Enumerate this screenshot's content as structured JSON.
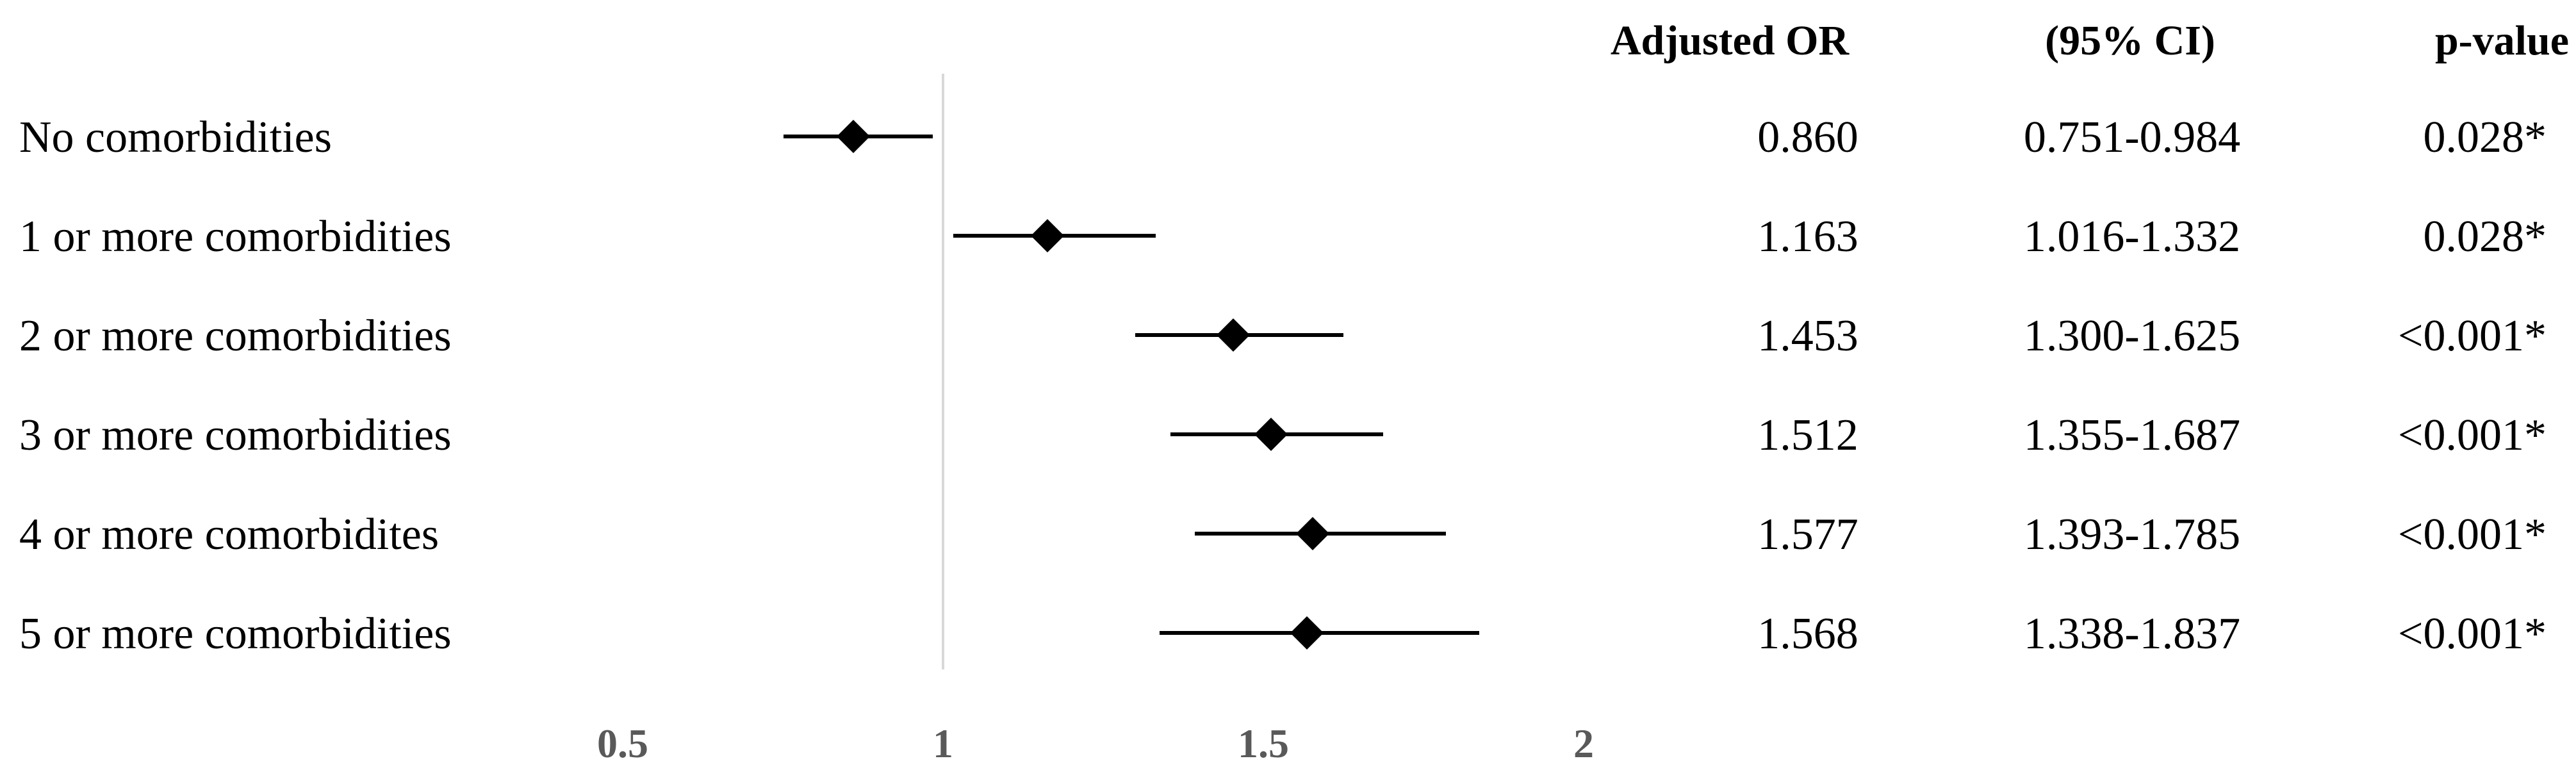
{
  "chart_data": {
    "type": "forest",
    "headers": {
      "estimate": "Adjusted OR",
      "ci": "(95% CI)",
      "p": "p-value"
    },
    "reference_line": 1,
    "x_range": [
      0.5,
      2
    ],
    "x_ticks": [
      {
        "value": 0.5,
        "label": "0.5"
      },
      {
        "value": 1,
        "label": "1"
      },
      {
        "value": 1.5,
        "label": "1.5"
      },
      {
        "value": 2,
        "label": "2"
      }
    ],
    "rows": [
      {
        "label": "No comorbidities",
        "or": 0.86,
        "lower": 0.751,
        "upper": 0.984,
        "or_text": "0.860",
        "ci_text": "0.751-0.984",
        "p_text": "0.028*"
      },
      {
        "label": "1 or more comorbidities",
        "or": 1.163,
        "lower": 1.016,
        "upper": 1.332,
        "or_text": "1.163",
        "ci_text": "1.016-1.332",
        "p_text": "0.028*"
      },
      {
        "label": "2 or more comorbidities",
        "or": 1.453,
        "lower": 1.3,
        "upper": 1.625,
        "or_text": "1.453",
        "ci_text": "1.300-1.625",
        "p_text": "<0.001*"
      },
      {
        "label": "3 or more comorbidities",
        "or": 1.512,
        "lower": 1.355,
        "upper": 1.687,
        "or_text": "1.512",
        "ci_text": "1.355-1.687",
        "p_text": "<0.001*"
      },
      {
        "label": "4 or more comorbidites",
        "or": 1.577,
        "lower": 1.393,
        "upper": 1.785,
        "or_text": "1.577",
        "ci_text": "1.393-1.785",
        "p_text": "<0.001*"
      },
      {
        "label": "5 or more comorbidities",
        "or": 1.568,
        "lower": 1.338,
        "upper": 1.837,
        "or_text": "1.568",
        "ci_text": "1.338-1.837",
        "p_text": "<0.001*"
      }
    ],
    "colors": {
      "marker": "#000000",
      "reference_line": "#d9d9d9",
      "tick_text": "#595959"
    }
  }
}
